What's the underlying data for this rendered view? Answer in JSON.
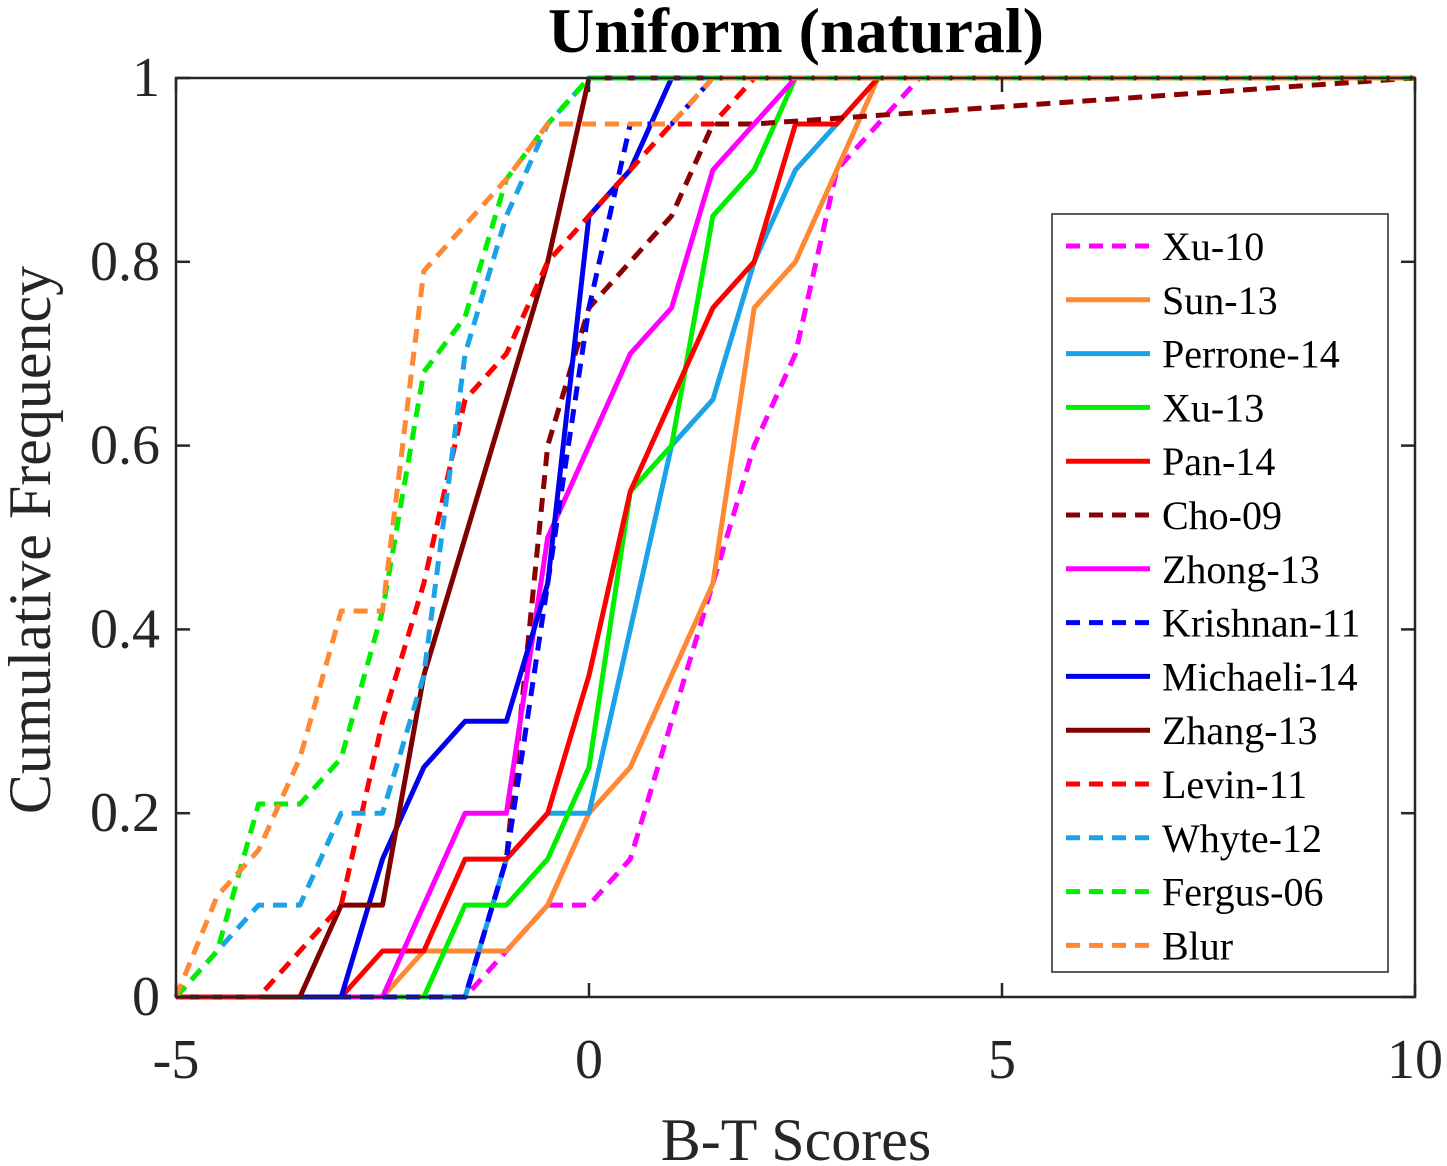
{
  "chart_data": {
    "type": "line",
    "title": "Uniform (natural)",
    "xlabel": "B-T Scores",
    "ylabel": "Cumulative Frequency",
    "xlim": [
      -5,
      10
    ],
    "ylim": [
      0,
      1
    ],
    "xticks": [
      -5,
      0,
      5,
      10
    ],
    "xtick_labels": [
      "-5",
      "0",
      "5",
      "10"
    ],
    "yticks": [
      0,
      0.2,
      0.4,
      0.6,
      0.8,
      1
    ],
    "ytick_labels": [
      "0",
      "0.2",
      "0.4",
      "0.6",
      "0.8",
      "1"
    ],
    "grid": false,
    "legend_position": "right",
    "series": [
      {
        "name": "Xu-10",
        "color": "#ff00ff",
        "dash": true,
        "x": [
          -5,
          -1.5,
          -1,
          -0.5,
          0,
          0.5,
          1,
          1.5,
          2,
          2.5,
          3,
          3.5,
          4,
          10
        ],
        "y": [
          0,
          0,
          0.05,
          0.1,
          0.1,
          0.15,
          0.3,
          0.45,
          0.6,
          0.7,
          0.9,
          0.95,
          1,
          1
        ]
      },
      {
        "name": "Sun-13",
        "color": "#ff8833",
        "dash": false,
        "x": [
          -5,
          -2.5,
          -2,
          -1.5,
          -1,
          -0.5,
          0,
          0.5,
          1,
          1.5,
          2,
          2.5,
          3,
          3.5,
          10
        ],
        "y": [
          0,
          0,
          0.05,
          0.05,
          0.05,
          0.1,
          0.2,
          0.25,
          0.35,
          0.45,
          0.75,
          0.8,
          0.9,
          1,
          1
        ]
      },
      {
        "name": "Perrone-14",
        "color": "#1aa3e8",
        "dash": false,
        "x": [
          -5,
          -1.5,
          -1,
          -0.5,
          0,
          0.5,
          1,
          1.5,
          2,
          2.5,
          3,
          3.5,
          10
        ],
        "y": [
          0,
          0,
          0.15,
          0.2,
          0.2,
          0.4,
          0.6,
          0.65,
          0.8,
          0.9,
          0.95,
          1,
          1
        ]
      },
      {
        "name": "Xu-13",
        "color": "#00ee00",
        "dash": false,
        "x": [
          -5,
          -2,
          -1.5,
          -1,
          -0.5,
          0,
          0.5,
          1,
          1.5,
          2,
          2.5,
          10
        ],
        "y": [
          0,
          0,
          0.1,
          0.1,
          0.15,
          0.25,
          0.55,
          0.6,
          0.85,
          0.9,
          1,
          1
        ]
      },
      {
        "name": "Pan-14",
        "color": "#ff0000",
        "dash": false,
        "x": [
          -5,
          -3,
          -2.5,
          -2,
          -1.5,
          -1,
          -0.5,
          0,
          0.5,
          1,
          1.5,
          2,
          2.5,
          3,
          3.5,
          10
        ],
        "y": [
          0,
          0,
          0.05,
          0.05,
          0.15,
          0.15,
          0.2,
          0.35,
          0.55,
          0.65,
          0.75,
          0.8,
          0.95,
          0.95,
          1,
          1
        ]
      },
      {
        "name": "Cho-09",
        "color": "#8b0000",
        "dash": true,
        "x": [
          -5,
          -1.5,
          -1,
          -0.5,
          0,
          0.5,
          1,
          1.5,
          2,
          10
        ],
        "y": [
          0,
          0,
          0.15,
          0.6,
          0.75,
          0.8,
          0.85,
          0.95,
          0.95,
          1
        ]
      },
      {
        "name": "Zhong-13",
        "color": "#ff00ff",
        "dash": false,
        "x": [
          -5,
          -2.5,
          -1.5,
          -1,
          -0.5,
          0,
          0.5,
          1,
          1.5,
          2.5,
          10
        ],
        "y": [
          0,
          0,
          0.2,
          0.2,
          0.5,
          0.6,
          0.7,
          0.75,
          0.9,
          1,
          1
        ]
      },
      {
        "name": "Krishnan-11",
        "color": "#0000ff",
        "dash": true,
        "x": [
          -5,
          -1.5,
          -1,
          -0.5,
          0,
          0.5,
          1,
          1.5,
          10
        ],
        "y": [
          0,
          0,
          0.15,
          0.45,
          0.75,
          0.95,
          0.95,
          1,
          1
        ]
      },
      {
        "name": "Michaeli-14",
        "color": "#0000ee",
        "dash": false,
        "x": [
          -5,
          -3,
          -2.5,
          -2,
          -1.5,
          -1,
          -0.5,
          0,
          0.5,
          1,
          10
        ],
        "y": [
          0,
          0,
          0.15,
          0.25,
          0.3,
          0.3,
          0.45,
          0.85,
          0.9,
          1,
          1
        ]
      },
      {
        "name": "Zhang-13",
        "color": "#800000",
        "dash": false,
        "x": [
          -5,
          -3.5,
          -3,
          -2.5,
          -2,
          -1.5,
          -1,
          -0.5,
          0,
          10
        ],
        "y": [
          0,
          0,
          0.1,
          0.1,
          0.35,
          0.5,
          0.65,
          0.8,
          1,
          1
        ]
      },
      {
        "name": "Levin-11",
        "color": "#ff0000",
        "dash": true,
        "x": [
          -5,
          -4,
          -3.5,
          -3,
          -2.5,
          -2,
          -1.5,
          -1,
          -0.5,
          0,
          0.5,
          1,
          1.5,
          2,
          10
        ],
        "y": [
          0,
          0,
          0.05,
          0.1,
          0.3,
          0.45,
          0.65,
          0.7,
          0.8,
          0.85,
          0.9,
          0.95,
          0.95,
          1,
          1
        ]
      },
      {
        "name": "Whyte-12",
        "color": "#1aa3e8",
        "dash": true,
        "x": [
          -5,
          -4.5,
          -4,
          -3.5,
          -3,
          -2.5,
          -2,
          -1.5,
          -1,
          -0.5,
          0,
          10
        ],
        "y": [
          0,
          0.05,
          0.1,
          0.1,
          0.2,
          0.2,
          0.35,
          0.7,
          0.85,
          0.95,
          1,
          1
        ]
      },
      {
        "name": "Fergus-06",
        "color": "#00ee00",
        "dash": true,
        "x": [
          -5,
          -4.5,
          -4,
          -3.5,
          -3,
          -2.5,
          -2,
          -1.5,
          -1,
          -0.5,
          0,
          10
        ],
        "y": [
          0,
          0.05,
          0.21,
          0.21,
          0.26,
          0.42,
          0.68,
          0.74,
          0.89,
          0.95,
          1,
          1
        ]
      },
      {
        "name": "Blur",
        "color": "#ff8833",
        "dash": true,
        "x": [
          -5,
          -4.5,
          -4,
          -3.5,
          -3,
          -2.5,
          -2,
          -1.5,
          -1,
          -0.5,
          0,
          0.5,
          1,
          1.5,
          10
        ],
        "y": [
          0,
          0.11,
          0.16,
          0.26,
          0.42,
          0.42,
          0.79,
          0.84,
          0.89,
          0.95,
          0.95,
          0.95,
          0.95,
          1,
          1
        ]
      }
    ]
  }
}
